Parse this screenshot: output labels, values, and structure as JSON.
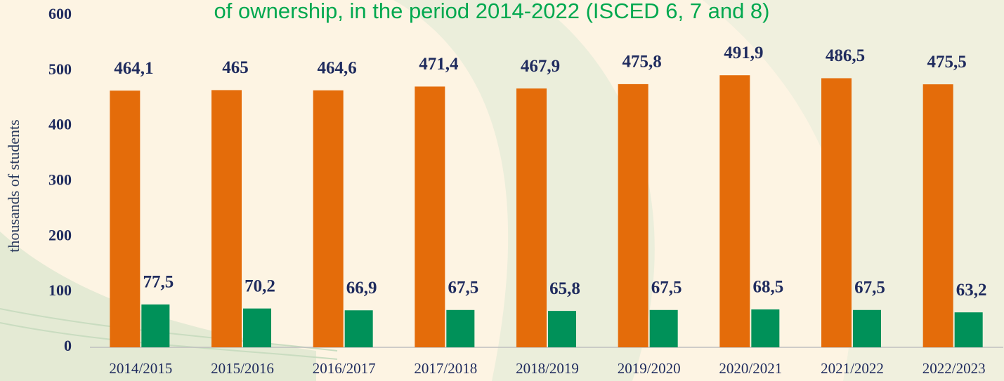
{
  "chart_data": {
    "type": "bar",
    "title": "of ownership, in the period 2014-2022 (ISCED 6, 7 and 8)",
    "y_label": "thousands of students",
    "categories": [
      "2014/2015",
      "2015/2016",
      "2016/2017",
      "2017/2018",
      "2018/2019",
      "2019/2020",
      "2020/2021",
      "2021/2022",
      "2022/2023"
    ],
    "series": [
      {
        "color": "#e46c0a",
        "values": [
          464.1,
          465,
          464.6,
          471.4,
          467.9,
          475.8,
          491.9,
          486.5,
          475.5
        ],
        "value_labels": [
          "464,1",
          "465",
          "464,6",
          "471,4",
          "467,9",
          "475,8",
          "491,9",
          "486,5",
          "475,5"
        ]
      },
      {
        "color": "#009159",
        "values": [
          77.5,
          70.2,
          66.9,
          67.5,
          65.8,
          67.5,
          68.5,
          67.5,
          63.2
        ],
        "value_labels": [
          "77,5",
          "70,2",
          "66,9",
          "67,5",
          "65,8",
          "67,5",
          "68,5",
          "67,5",
          "63,2"
        ]
      }
    ],
    "ylim": [
      0,
      600
    ],
    "yticks": [
      0,
      100,
      200,
      300,
      400,
      500,
      600
    ],
    "grid": false
  }
}
